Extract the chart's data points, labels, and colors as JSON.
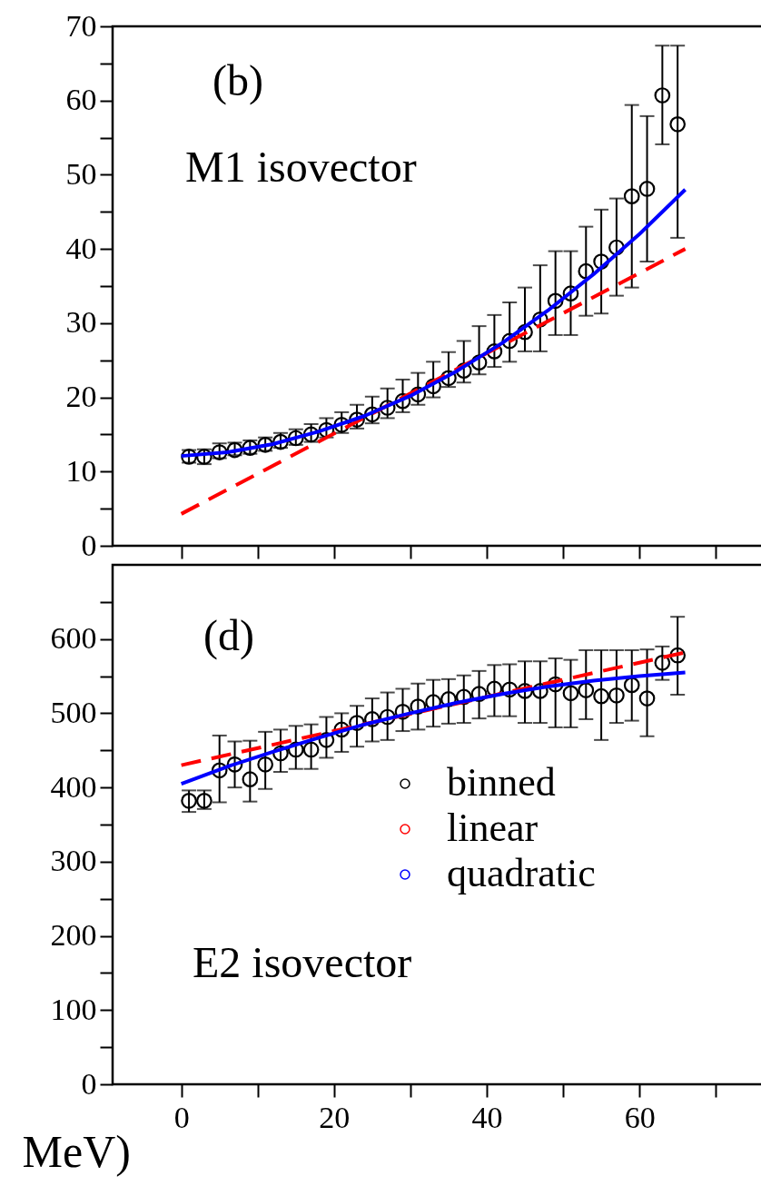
{
  "chart_data": [
    {
      "type": "scatter",
      "xlim": [
        -9,
        78.3
      ],
      "xticks": [
        0,
        {
          "value": 10,
          "label": null
        },
        20,
        {
          "value": 30,
          "label": null
        },
        40,
        {
          "value": 50,
          "label": null
        },
        60,
        {
          "value": 70,
          "label": null
        }
      ],
      "ylim": [
        0,
        70
      ],
      "yticks": [
        0,
        {
          "value": 5,
          "label": null
        },
        10,
        {
          "value": 15,
          "label": null
        },
        20,
        {
          "value": 25,
          "label": null
        },
        30,
        {
          "value": 35,
          "label": null
        },
        40,
        {
          "value": 45,
          "label": null
        },
        50,
        {
          "value": 55,
          "label": null
        },
        60,
        {
          "value": 65,
          "label": null
        },
        70
      ],
      "tick_labels": "y",
      "grid": false,
      "legend": false,
      "annotations": [
        "(b)",
        "M1 isovector"
      ],
      "series": [
        {
          "type": "scatter",
          "marker": "circle",
          "color": "#000000",
          "x": [
            1,
            3,
            5,
            7,
            9,
            11,
            13,
            15,
            17,
            19,
            21,
            23,
            25,
            27,
            29,
            31,
            33,
            35,
            37,
            39,
            41,
            43,
            45,
            47,
            49,
            51,
            53,
            55,
            57,
            59,
            61,
            63,
            65
          ],
          "values": [
            12.0,
            12.0,
            12.6,
            12.9,
            13.2,
            13.6,
            14.0,
            14.5,
            15.0,
            15.6,
            16.3,
            17.0,
            17.7,
            18.6,
            19.5,
            20.4,
            21.5,
            22.6,
            23.6,
            24.7,
            26.2,
            27.6,
            28.8,
            30.5,
            33.0,
            34.0,
            37.0,
            38.3,
            40.2,
            47.1,
            48.1,
            60.7,
            56.8
          ],
          "errors": [
            [
              11.2,
              12.9
            ],
            [
              11.0,
              13.0
            ],
            [
              11.8,
              13.8
            ],
            [
              12.2,
              13.9
            ],
            [
              12.4,
              14.2
            ],
            [
              12.8,
              14.6
            ],
            [
              13.2,
              15.2
            ],
            [
              13.6,
              15.7
            ],
            [
              14.0,
              16.4
            ],
            [
              14.6,
              17.2
            ],
            [
              15.2,
              18.0
            ],
            [
              15.8,
              19.0
            ],
            [
              16.5,
              20.1
            ],
            [
              17.2,
              21.2
            ],
            [
              18.0,
              22.4
            ],
            [
              19.0,
              23.3
            ],
            [
              20.0,
              24.8
            ],
            [
              21.4,
              26.1
            ],
            [
              22.0,
              27.6
            ],
            [
              23.1,
              29.6
            ],
            [
              24.1,
              31.1
            ],
            [
              24.8,
              32.8
            ],
            [
              26.2,
              34.8
            ],
            [
              26.2,
              37.8
            ],
            [
              28.4,
              39.7
            ],
            [
              28.4,
              39.7
            ],
            [
              31.0,
              43.0
            ],
            [
              31.3,
              45.3
            ],
            [
              33.7,
              46.8
            ],
            [
              34.8,
              59.4
            ],
            [
              38.3,
              57.9
            ],
            [
              54.1,
              67.4
            ],
            [
              41.5,
              67.4
            ]
          ]
        },
        {
          "type": "line",
          "marker": "none",
          "line_style": "dashed",
          "color": "#ff0000",
          "x": [
            0,
            66
          ],
          "values": [
            4.3,
            40.0
          ]
        },
        {
          "type": "line",
          "marker": "none",
          "line_style": "solid",
          "color": "#0000ff",
          "x": [
            0,
            6,
            12,
            18,
            24,
            30,
            36,
            42,
            48,
            54,
            60,
            66
          ],
          "values": [
            12.1,
            12.6,
            13.7,
            15.4,
            17.5,
            20.2,
            23.5,
            27.3,
            31.7,
            36.6,
            42.0,
            48.0
          ]
        }
      ]
    },
    {
      "type": "scatter",
      "xlabel": "MeV)",
      "xlim": [
        -9,
        78.3
      ],
      "xticks": [
        0,
        {
          "value": 10,
          "label": null
        },
        20,
        {
          "value": 30,
          "label": null
        },
        40,
        {
          "value": 50,
          "label": null
        },
        60,
        {
          "value": 70,
          "label": null
        }
      ],
      "ylim": [
        0,
        700
      ],
      "yticks": [
        0,
        {
          "value": 50,
          "label": null
        },
        100,
        {
          "value": 150,
          "label": null
        },
        200,
        {
          "value": 250,
          "label": null
        },
        300,
        {
          "value": 350,
          "label": null
        },
        400,
        {
          "value": 450,
          "label": null
        },
        500,
        {
          "value": 550,
          "label": null
        },
        600,
        {
          "value": 650,
          "label": null
        }
      ],
      "grid": false,
      "legend": "right",
      "annotations": [
        "(d)",
        "E2 isovector"
      ],
      "series": [
        {
          "type": "scatter",
          "name": "binned",
          "marker": "circle",
          "color": "#000000",
          "x": [
            1,
            3,
            5,
            7,
            9,
            11,
            13,
            15,
            17,
            19,
            21,
            23,
            25,
            27,
            29,
            31,
            33,
            35,
            37,
            39,
            41,
            43,
            45,
            47,
            49,
            51,
            53,
            55,
            57,
            59,
            61,
            63,
            65
          ],
          "values": [
            382,
            382,
            423,
            431,
            411,
            431,
            446,
            451,
            451,
            464,
            478,
            487,
            492,
            495,
            502,
            509,
            515,
            519,
            522,
            526,
            533,
            532,
            530,
            530,
            539,
            527,
            531,
            523,
            524,
            538,
            520,
            568,
            578
          ],
          "errors": [
            [
              367,
              396
            ],
            [
              371,
              396
            ],
            [
              380,
              470
            ],
            [
              400,
              462
            ],
            [
              381,
              463
            ],
            [
              398,
              475
            ],
            [
              421,
              478
            ],
            [
              425,
              483
            ],
            [
              425,
              485
            ],
            [
              440,
              495
            ],
            [
              448,
              500
            ],
            [
              455,
              510
            ],
            [
              462,
              520
            ],
            [
              464,
              528
            ],
            [
              476,
              533
            ],
            [
              478,
              540
            ],
            [
              482,
              545
            ],
            [
              486,
              546
            ],
            [
              487,
              551
            ],
            [
              493,
              557
            ],
            [
              496,
              565
            ],
            [
              496,
              566
            ],
            [
              487,
              570
            ],
            [
              487,
              570
            ],
            [
              481,
              574
            ],
            [
              481,
              572
            ],
            [
              492,
              585
            ],
            [
              464,
              585
            ],
            [
              487,
              585
            ],
            [
              490,
              585
            ],
            [
              469,
              586
            ],
            [
              545,
              590
            ],
            [
              525,
              630
            ]
          ]
        },
        {
          "type": "line",
          "name": "linear",
          "marker": "none",
          "line_style": "dashed",
          "color": "#ff0000",
          "x": [
            0,
            66
          ],
          "values": [
            430,
            582
          ]
        },
        {
          "type": "line",
          "name": "quadratic",
          "marker": "none",
          "line_style": "solid",
          "color": "#0000ff",
          "x": [
            0,
            6,
            12,
            18,
            24,
            30,
            36,
            42,
            48,
            54,
            60,
            66
          ],
          "values": [
            405,
            428,
            448,
            467,
            485,
            500,
            514,
            526,
            536,
            544,
            550,
            555
          ]
        }
      ]
    }
  ]
}
